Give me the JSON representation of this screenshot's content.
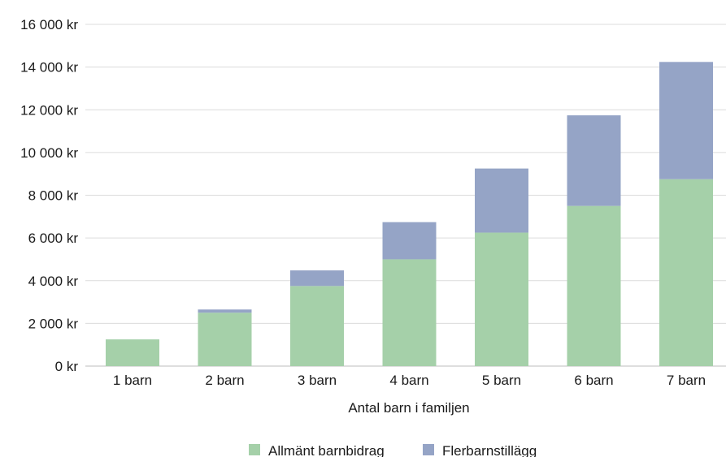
{
  "chart_data": {
    "type": "bar",
    "stacked": true,
    "categories": [
      "1 barn",
      "2 barn",
      "3 barn",
      "4 barn",
      "5 barn",
      "6 barn",
      "7 barn"
    ],
    "series": [
      {
        "name": "Allmänt barnbidrag",
        "color": "#a5d0a9",
        "values": [
          1250,
          2500,
          3750,
          5000,
          6250,
          7500,
          8750
        ]
      },
      {
        "name": "Flerbarnstillägg",
        "color": "#95a4c6",
        "values": [
          0,
          150,
          730,
          1740,
          3000,
          4240,
          5490
        ]
      }
    ],
    "title": "",
    "xlabel": "Antal barn i familjen",
    "ylabel": "",
    "ylim": [
      0,
      16000
    ],
    "yticks": [
      0,
      2000,
      4000,
      6000,
      8000,
      10000,
      12000,
      14000,
      16000
    ],
    "ytick_labels": [
      "0 kr",
      "2 000 kr",
      "4 000 kr",
      "6 000 kr",
      "8 000 kr",
      "10 000 kr",
      "12 000 kr",
      "14 000 kr",
      "16 000 kr"
    ],
    "grid": true,
    "legend_position": "bottom"
  }
}
